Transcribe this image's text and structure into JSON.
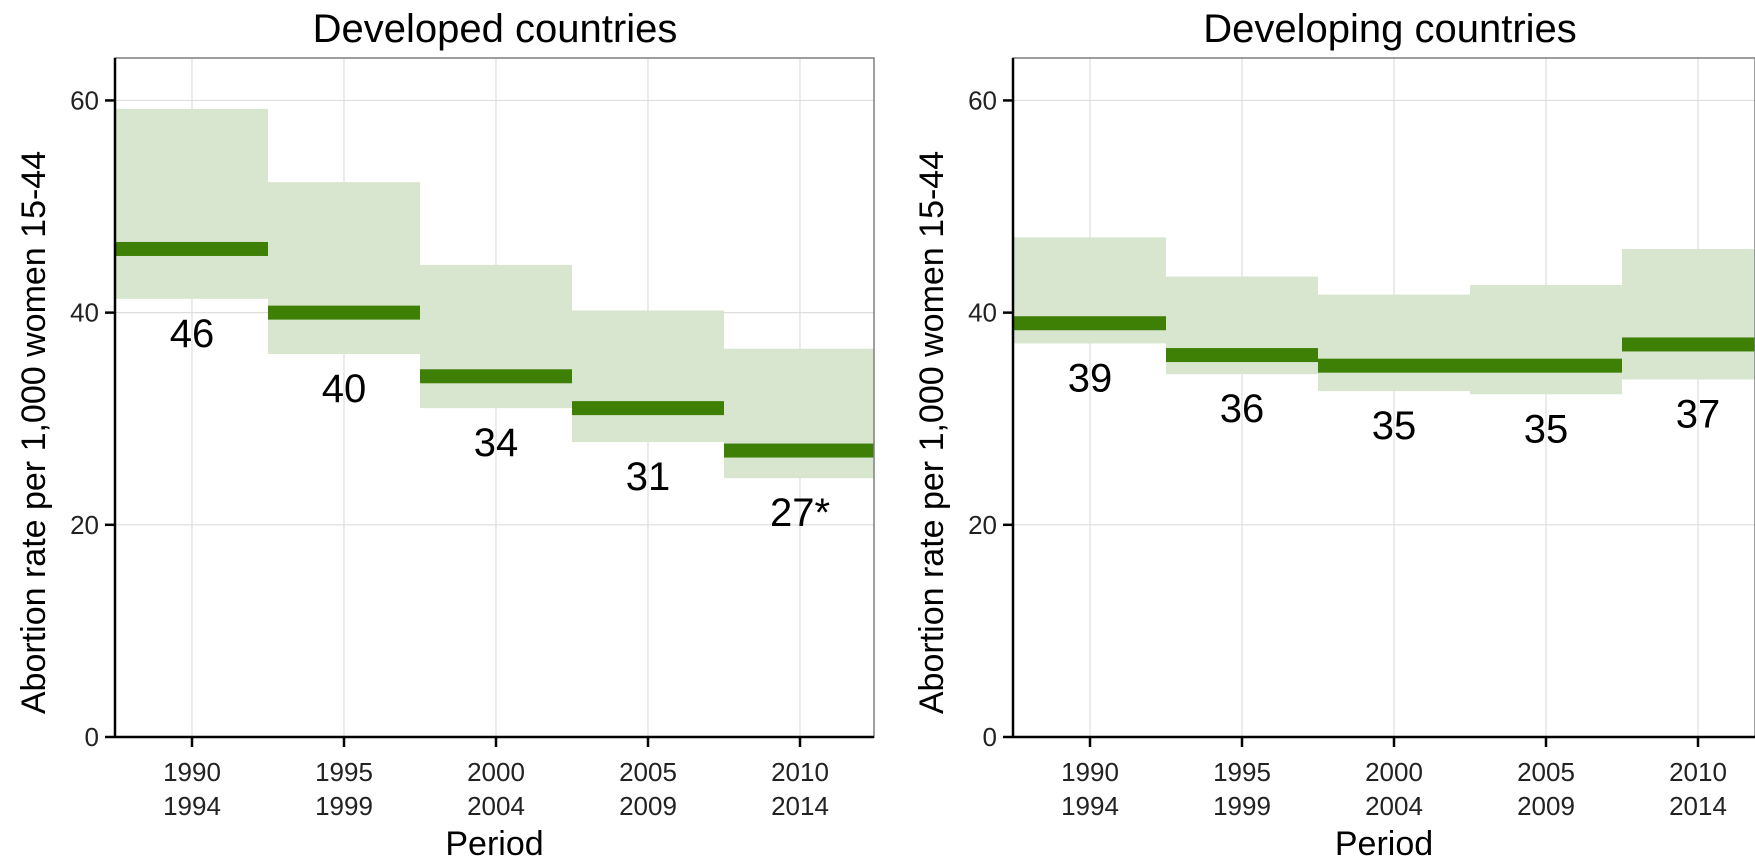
{
  "chart_data": [
    {
      "type": "bar",
      "title": "Developed countries",
      "xlabel": "Period",
      "ylabel": "Abortion rate per 1,000 women 15-44",
      "ylim": [
        0,
        64
      ],
      "yticks": [
        "0",
        "20",
        "40",
        "60"
      ],
      "categories": [
        [
          "1990",
          "1994"
        ],
        [
          "1995",
          "1999"
        ],
        [
          "2000",
          "2004"
        ],
        [
          "2005",
          "2009"
        ],
        [
          "2010",
          "2014"
        ]
      ],
      "values": [
        46,
        40,
        34,
        31,
        27
      ],
      "lower": [
        41.3,
        36.1,
        31.0,
        27.8,
        24.4
      ],
      "upper": [
        59.2,
        52.3,
        44.5,
        40.2,
        36.6
      ],
      "labels": [
        "46",
        "40",
        "34",
        "31",
        "27*"
      ],
      "grid": true,
      "band_color": "#d8e6cf",
      "bar_color": "#3e7f06"
    },
    {
      "type": "bar",
      "title": "Developing countries",
      "xlabel": "Period",
      "ylabel": "Abortion rate per 1,000 women 15-44",
      "ylim": [
        0,
        64
      ],
      "yticks": [
        "0",
        "20",
        "40",
        "60"
      ],
      "categories": [
        [
          "1990",
          "1994"
        ],
        [
          "1995",
          "1999"
        ],
        [
          "2000",
          "2004"
        ],
        [
          "2005",
          "2009"
        ],
        [
          "2010",
          "2014"
        ]
      ],
      "values": [
        39,
        36,
        35,
        35,
        37
      ],
      "lower": [
        37.1,
        34.2,
        32.6,
        32.3,
        33.7
      ],
      "upper": [
        47.1,
        43.4,
        41.7,
        42.6,
        46.0
      ],
      "labels": [
        "39",
        "36",
        "35",
        "35",
        "37"
      ],
      "grid": true,
      "band_color": "#d8e6cf",
      "bar_color": "#3e7f06"
    }
  ]
}
